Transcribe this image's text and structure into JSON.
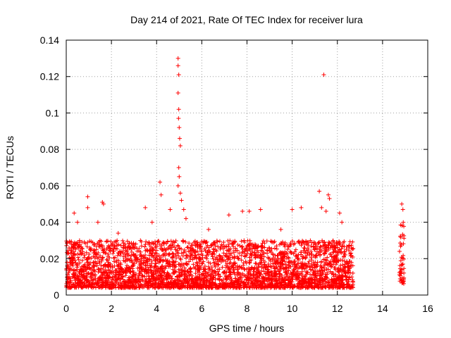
{
  "chart_data": {
    "type": "scatter",
    "title": "Day 214 of 2021, Rate Of TEC Index for receiver lura",
    "xlabel": "GPS time / hours",
    "ylabel": "ROTI / TECUs",
    "xlim": [
      0,
      16
    ],
    "ylim": [
      0,
      0.14
    ],
    "xticks": [
      "0",
      "2",
      "4",
      "6",
      "8",
      "10",
      "12",
      "14",
      "16"
    ],
    "yticks": [
      "0",
      "0.02",
      "0.04",
      "0.06",
      "0.08",
      "0.1",
      "0.12",
      "0.14"
    ],
    "grid": true,
    "marker": "+",
    "color": "#ff0000",
    "bands": [
      {
        "x0": 0.0,
        "x1": 12.7,
        "ymin": 0.004,
        "ymax": 0.03
      },
      {
        "x0": 14.75,
        "x1": 14.95,
        "ymin": 0.006,
        "ymax": 0.04
      }
    ],
    "highlights": [
      {
        "x": 0.35,
        "y": 0.045
      },
      {
        "x": 0.5,
        "y": 0.04
      },
      {
        "x": 0.95,
        "y": 0.054
      },
      {
        "x": 0.95,
        "y": 0.048
      },
      {
        "x": 1.6,
        "y": 0.051
      },
      {
        "x": 1.65,
        "y": 0.05
      },
      {
        "x": 1.4,
        "y": 0.04
      },
      {
        "x": 2.3,
        "y": 0.034
      },
      {
        "x": 3.5,
        "y": 0.048
      },
      {
        "x": 3.8,
        "y": 0.04
      },
      {
        "x": 4.15,
        "y": 0.062
      },
      {
        "x": 4.2,
        "y": 0.055
      },
      {
        "x": 4.6,
        "y": 0.047
      },
      {
        "x": 4.95,
        "y": 0.13
      },
      {
        "x": 4.95,
        "y": 0.126
      },
      {
        "x": 4.98,
        "y": 0.121
      },
      {
        "x": 4.95,
        "y": 0.111
      },
      {
        "x": 4.98,
        "y": 0.102
      },
      {
        "x": 4.97,
        "y": 0.097
      },
      {
        "x": 5.0,
        "y": 0.092
      },
      {
        "x": 5.02,
        "y": 0.086
      },
      {
        "x": 5.05,
        "y": 0.082
      },
      {
        "x": 4.98,
        "y": 0.07
      },
      {
        "x": 5.0,
        "y": 0.065
      },
      {
        "x": 4.95,
        "y": 0.06
      },
      {
        "x": 5.05,
        "y": 0.056
      },
      {
        "x": 5.1,
        "y": 0.052
      },
      {
        "x": 5.2,
        "y": 0.047
      },
      {
        "x": 5.3,
        "y": 0.042
      },
      {
        "x": 6.3,
        "y": 0.036
      },
      {
        "x": 7.2,
        "y": 0.044
      },
      {
        "x": 7.8,
        "y": 0.046
      },
      {
        "x": 8.1,
        "y": 0.046
      },
      {
        "x": 8.6,
        "y": 0.047
      },
      {
        "x": 9.5,
        "y": 0.036
      },
      {
        "x": 10.0,
        "y": 0.047
      },
      {
        "x": 10.4,
        "y": 0.048
      },
      {
        "x": 11.2,
        "y": 0.057
      },
      {
        "x": 11.4,
        "y": 0.121
      },
      {
        "x": 11.6,
        "y": 0.055
      },
      {
        "x": 11.65,
        "y": 0.053
      },
      {
        "x": 11.3,
        "y": 0.048
      },
      {
        "x": 11.5,
        "y": 0.046
      },
      {
        "x": 12.1,
        "y": 0.045
      },
      {
        "x": 12.2,
        "y": 0.04
      },
      {
        "x": 14.85,
        "y": 0.05
      },
      {
        "x": 14.9,
        "y": 0.047
      }
    ]
  }
}
